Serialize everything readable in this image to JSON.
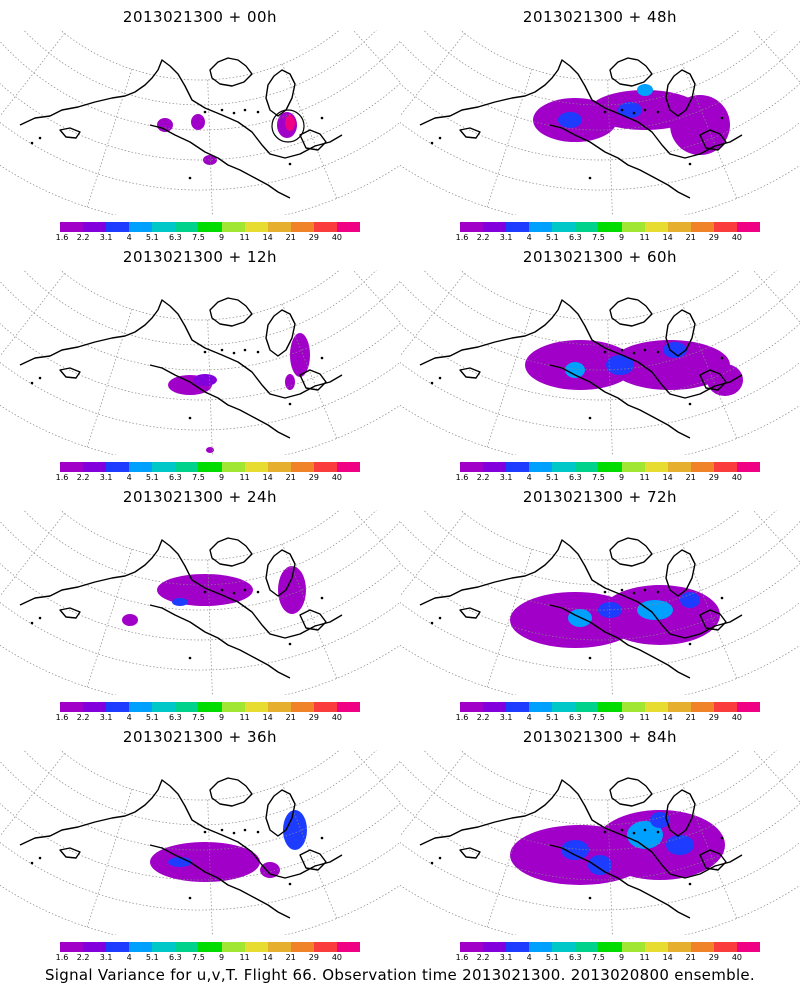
{
  "panels": [
    {
      "title": "2013021300 + 00h",
      "level": 0
    },
    {
      "title": "2013021300 + 48h",
      "level": 4
    },
    {
      "title": "2013021300 + 12h",
      "level": 1
    },
    {
      "title": "2013021300 + 60h",
      "level": 5
    },
    {
      "title": "2013021300 + 24h",
      "level": 2
    },
    {
      "title": "2013021300 + 72h",
      "level": 6
    },
    {
      "title": "2013021300 + 36h",
      "level": 3
    },
    {
      "title": "2013021300 + 84h",
      "level": 7
    }
  ],
  "legend": {
    "labels": [
      "1.6",
      "2.2",
      "3.1",
      "4",
      "5.1",
      "6.3",
      "7.5",
      "9",
      "11",
      "14",
      "21",
      "29",
      "40"
    ],
    "colors": [
      "#a000c8",
      "#8200dc",
      "#1e3cff",
      "#00a0ff",
      "#00c8c8",
      "#00d28c",
      "#00dc00",
      "#a0e632",
      "#e6dc32",
      "#e6af2d",
      "#f08228",
      "#fa3c3c",
      "#f00082"
    ]
  },
  "caption": "Signal Variance for u,v,T. Flight 66. Observation time 2013021300. 2013020800 ensemble."
}
